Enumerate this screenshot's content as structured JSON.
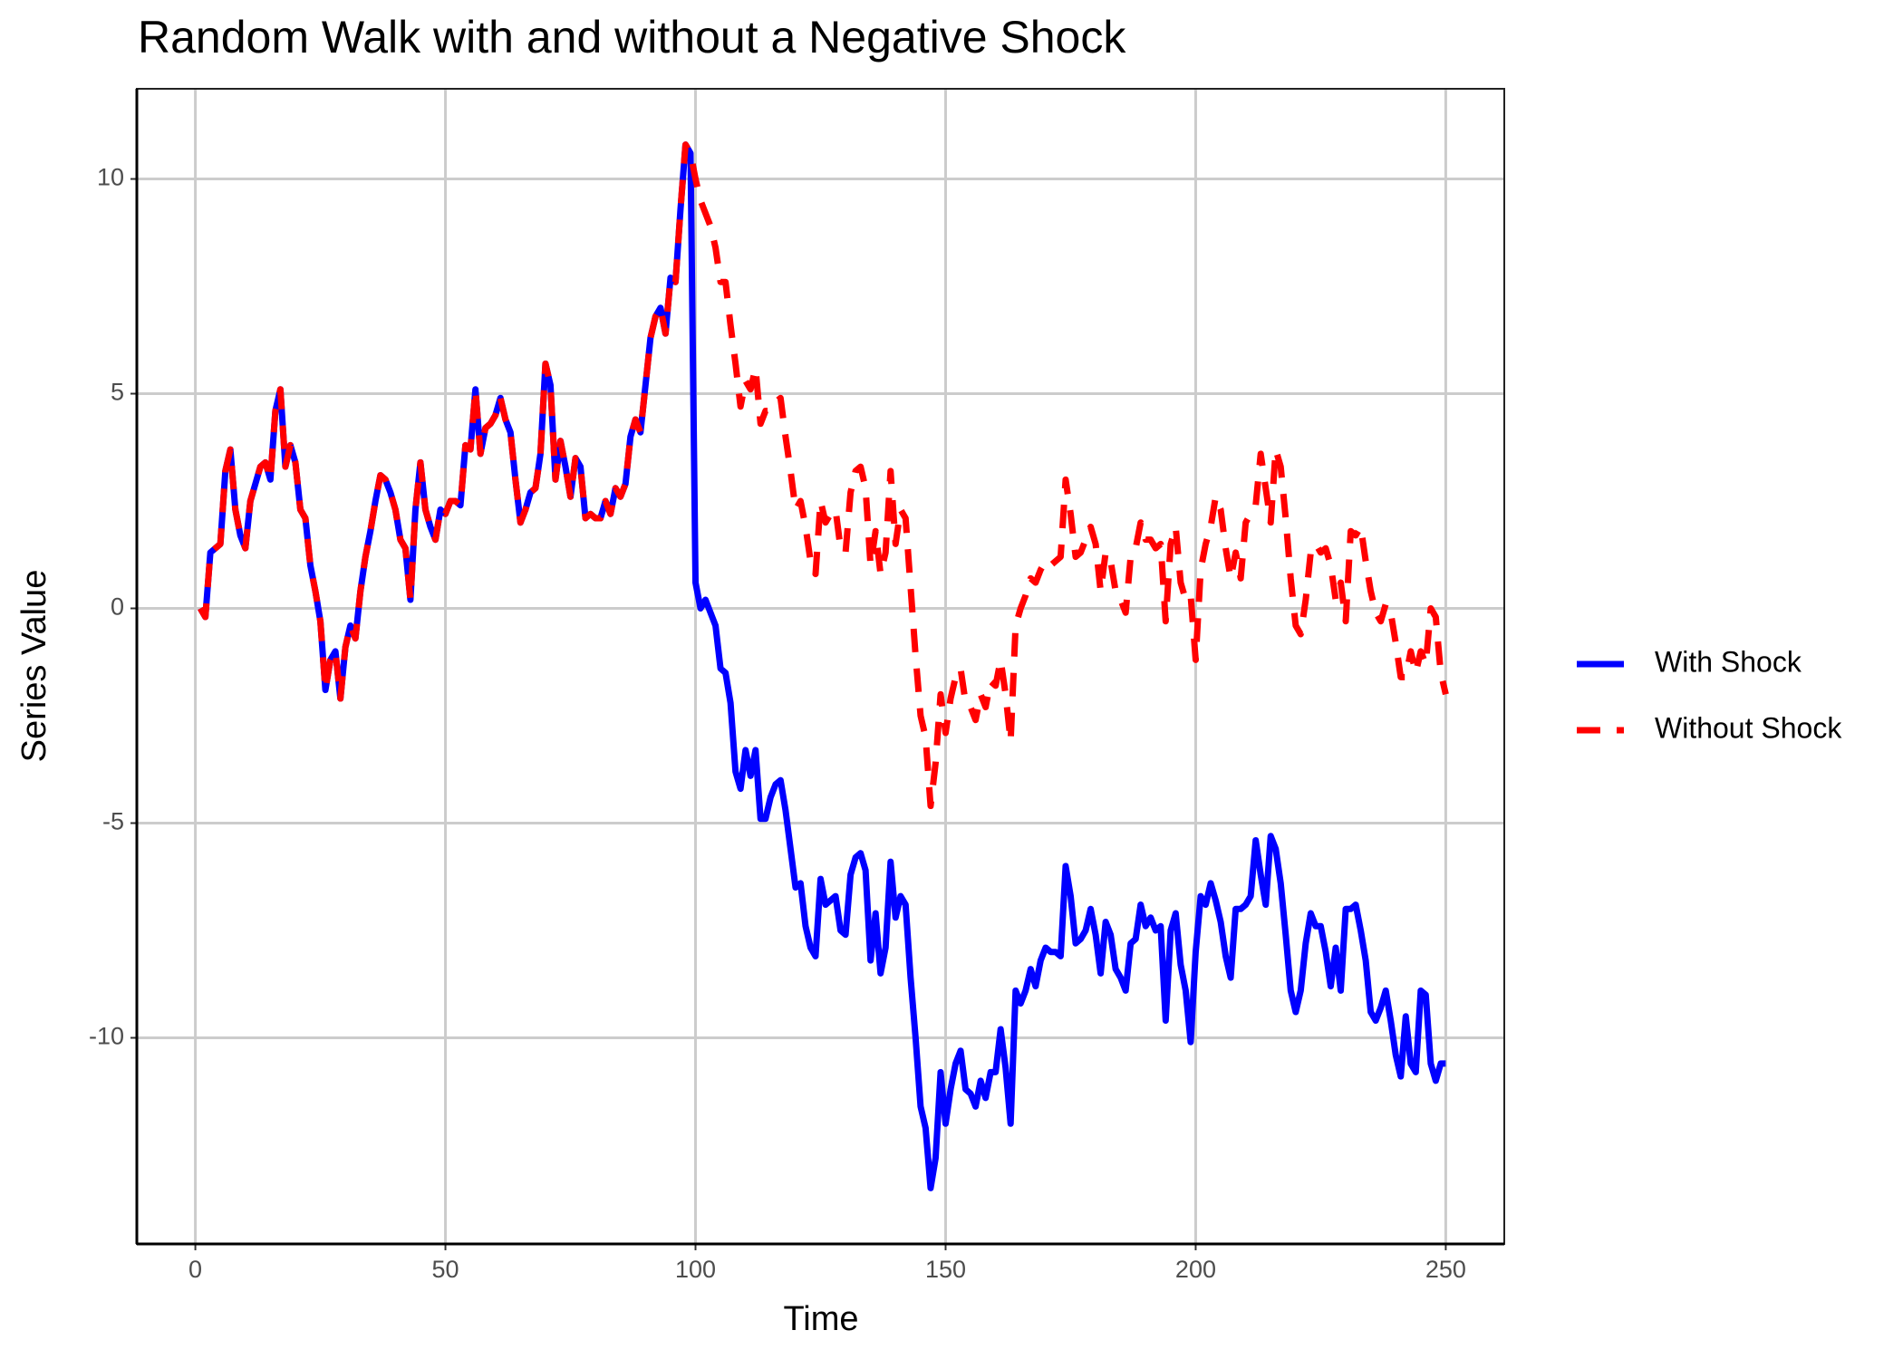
{
  "chart_data": {
    "type": "line",
    "title": "Random Walk with and without a Negative Shock",
    "x_label": "Time",
    "y_label": "Series Value",
    "x": [
      1,
      2,
      3,
      4,
      5,
      6,
      7,
      8,
      9,
      10,
      11,
      12,
      13,
      14,
      15,
      16,
      17,
      18,
      19,
      20,
      21,
      22,
      23,
      24,
      25,
      26,
      27,
      28,
      29,
      30,
      31,
      32,
      33,
      34,
      35,
      36,
      37,
      38,
      39,
      40,
      41,
      42,
      43,
      44,
      45,
      46,
      47,
      48,
      49,
      50,
      51,
      52,
      53,
      54,
      55,
      56,
      57,
      58,
      59,
      60,
      61,
      62,
      63,
      64,
      65,
      66,
      67,
      68,
      69,
      70,
      71,
      72,
      73,
      74,
      75,
      76,
      77,
      78,
      79,
      80,
      81,
      82,
      83,
      84,
      85,
      86,
      87,
      88,
      89,
      90,
      91,
      92,
      93,
      94,
      95,
      96,
      97,
      98,
      99,
      100,
      101,
      102,
      103,
      104,
      105,
      106,
      107,
      108,
      109,
      110,
      111,
      112,
      113,
      114,
      115,
      116,
      117,
      118,
      119,
      120,
      121,
      122,
      123,
      124,
      125,
      126,
      127,
      128,
      129,
      130,
      131,
      132,
      133,
      134,
      135,
      136,
      137,
      138,
      139,
      140,
      141,
      142,
      143,
      144,
      145,
      146,
      147,
      148,
      149,
      150,
      151,
      152,
      153,
      154,
      155,
      156,
      157,
      158,
      159,
      160,
      161,
      162,
      163,
      164,
      165,
      166,
      167,
      168,
      169,
      170,
      171,
      172,
      173,
      174,
      175,
      176,
      177,
      178,
      179,
      180,
      181,
      182,
      183,
      184,
      185,
      186,
      187,
      188,
      189,
      190,
      191,
      192,
      193,
      194,
      195,
      196,
      197,
      198,
      199,
      200,
      201,
      202,
      203,
      204,
      205,
      206,
      207,
      208,
      209,
      210,
      211,
      212,
      213,
      214,
      215,
      216,
      217,
      218,
      219,
      220,
      221,
      222,
      223,
      224,
      225,
      226,
      227,
      228,
      229,
      230,
      231,
      232,
      233,
      234,
      235,
      236,
      237,
      238,
      239,
      240,
      241,
      242,
      243,
      244,
      245,
      246,
      247,
      248,
      249,
      250
    ],
    "series": [
      {
        "name": "With Shock",
        "color": "#0000ff",
        "dash": false,
        "values": [
          0,
          -0.2,
          1.3,
          1.4,
          1.5,
          3.2,
          3.7,
          2.3,
          1.7,
          1.4,
          2.5,
          2.9,
          3.3,
          3.4,
          3.0,
          4.6,
          5.1,
          3.3,
          3.8,
          3.4,
          2.3,
          2.1,
          1.0,
          0.4,
          -0.3,
          -1.9,
          -1.2,
          -1.0,
          -2.1,
          -0.9,
          -0.4,
          -0.7,
          0.4,
          1.2,
          1.8,
          2.5,
          3.1,
          3.0,
          2.7,
          2.3,
          1.6,
          1.4,
          0.2,
          2.3,
          3.4,
          2.3,
          1.9,
          1.6,
          2.3,
          2.2,
          2.5,
          2.5,
          2.4,
          3.8,
          3.7,
          5.1,
          3.6,
          4.2,
          4.3,
          4.5,
          4.9,
          4.4,
          4.1,
          3.0,
          2.0,
          2.3,
          2.7,
          2.8,
          3.6,
          5.7,
          5.2,
          3.0,
          3.9,
          3.3,
          2.6,
          3.5,
          3.3,
          2.1,
          2.2,
          2.1,
          2.1,
          2.5,
          2.2,
          2.8,
          2.6,
          2.9,
          4.0,
          4.4,
          4.1,
          5.2,
          6.3,
          6.8,
          7.0,
          6.4,
          7.7,
          7.6,
          9.3,
          10.8,
          10.6,
          0.6,
          0.0,
          0.2,
          -0.1,
          -0.4,
          -1.4,
          -1.5,
          -2.2,
          -3.8,
          -4.2,
          -3.3,
          -3.9,
          -3.3,
          -4.9,
          -4.9,
          -4.4,
          -4.1,
          -4.0,
          -4.7,
          -5.6,
          -6.5,
          -6.4,
          -7.4,
          -7.9,
          -8.1,
          -6.3,
          -6.9,
          -6.8,
          -6.7,
          -7.5,
          -7.6,
          -6.2,
          -5.8,
          -5.7,
          -6.1,
          -8.2,
          -7.1,
          -8.5,
          -7.9,
          -5.9,
          -7.2,
          -6.7,
          -6.9,
          -8.6,
          -10.0,
          -11.6,
          -12.1,
          -13.5,
          -12.8,
          -10.8,
          -12.0,
          -11.2,
          -10.6,
          -10.3,
          -11.2,
          -11.3,
          -11.6,
          -11.0,
          -11.4,
          -10.8,
          -10.8,
          -9.8,
          -10.7,
          -12.0,
          -8.9,
          -9.2,
          -8.9,
          -8.4,
          -8.8,
          -8.2,
          -7.9,
          -8.0,
          -8.0,
          -8.1,
          -6.0,
          -6.7,
          -7.8,
          -7.7,
          -7.5,
          -7.0,
          -7.6,
          -8.5,
          -7.3,
          -7.6,
          -8.4,
          -8.6,
          -8.9,
          -7.8,
          -7.7,
          -6.9,
          -7.4,
          -7.2,
          -7.5,
          -7.4,
          -9.6,
          -7.5,
          -7.1,
          -8.3,
          -8.9,
          -10.1,
          -8.0,
          -6.7,
          -6.9,
          -6.4,
          -6.8,
          -7.3,
          -8.1,
          -8.6,
          -7.0,
          -7.0,
          -6.9,
          -6.7,
          -5.4,
          -6.2,
          -6.9,
          -5.3,
          -5.6,
          -6.4,
          -7.6,
          -8.9,
          -9.4,
          -8.9,
          -7.8,
          -7.1,
          -7.4,
          -7.4,
          -8.0,
          -8.8,
          -7.9,
          -8.9,
          -7.0,
          -7.0,
          -6.9,
          -7.5,
          -8.2,
          -9.4,
          -9.6,
          -9.3,
          -8.9,
          -9.6,
          -10.4,
          -10.9,
          -9.5,
          -10.6,
          -10.8,
          -8.9,
          -9.0,
          -10.6,
          -11.0,
          -10.6,
          -10.6
        ]
      },
      {
        "name": "Without Shock",
        "color": "#ff0000",
        "dash": true,
        "values": [
          0,
          -0.2,
          1.3,
          1.4,
          1.5,
          3.2,
          3.7,
          2.3,
          1.7,
          1.4,
          2.5,
          2.9,
          3.3,
          3.4,
          3.0,
          4.6,
          5.1,
          3.3,
          3.8,
          3.4,
          2.3,
          2.1,
          1.0,
          0.4,
          -0.3,
          -1.9,
          -1.2,
          -1.0,
          -2.1,
          -0.9,
          -0.4,
          -0.7,
          0.4,
          1.2,
          1.8,
          2.5,
          3.1,
          3.0,
          2.7,
          2.3,
          1.6,
          1.4,
          0.2,
          2.3,
          3.4,
          2.3,
          1.9,
          1.6,
          2.3,
          2.2,
          2.5,
          2.5,
          2.4,
          3.8,
          3.7,
          5.1,
          3.6,
          4.2,
          4.3,
          4.5,
          4.9,
          4.4,
          4.1,
          3.0,
          2.0,
          2.3,
          2.7,
          2.8,
          3.6,
          5.7,
          5.2,
          3.0,
          3.9,
          3.3,
          2.6,
          3.5,
          3.3,
          2.1,
          2.2,
          2.1,
          2.1,
          2.5,
          2.2,
          2.8,
          2.6,
          2.9,
          4.0,
          4.4,
          4.1,
          5.2,
          6.3,
          6.8,
          7.0,
          6.4,
          7.7,
          7.6,
          9.3,
          10.8,
          10.6,
          10.0,
          9.5,
          9.2,
          8.9,
          8.4,
          7.6,
          7.6,
          6.6,
          5.7,
          4.7,
          5.3,
          5.1,
          5.6,
          4.3,
          4.6,
          4.6,
          4.8,
          4.9,
          4.0,
          3.2,
          2.3,
          2.5,
          1.9,
          1.1,
          0.8,
          2.5,
          2.0,
          2.2,
          2.3,
          1.4,
          1.3,
          2.7,
          3.2,
          3.3,
          2.8,
          1.0,
          1.8,
          0.8,
          1.3,
          3.2,
          1.5,
          2.3,
          2.1,
          0.5,
          -1.1,
          -2.5,
          -3.0,
          -4.6,
          -3.6,
          -2.0,
          -2.9,
          -2.1,
          -1.6,
          -1.4,
          -2.2,
          -2.3,
          -2.6,
          -2.0,
          -2.3,
          -1.7,
          -1.8,
          -1.2,
          -2.0,
          -3.1,
          -0.4,
          0.0,
          0.3,
          0.7,
          0.6,
          0.9,
          1.1,
          1.0,
          1.1,
          1.2,
          3.0,
          2.2,
          1.2,
          1.3,
          1.6,
          1.9,
          1.5,
          0.4,
          1.3,
          1.1,
          0.4,
          0.2,
          -0.1,
          1.2,
          1.4,
          2.0,
          1.6,
          1.6,
          1.4,
          1.5,
          -0.3,
          1.5,
          1.9,
          0.6,
          0.2,
          0.3,
          -1.2,
          0.9,
          1.5,
          1.9,
          2.6,
          2.3,
          1.4,
          0.7,
          1.3,
          0.7,
          2.0,
          2.2,
          2.4,
          3.6,
          2.8,
          2.0,
          3.7,
          3.3,
          2.1,
          0.7,
          -0.4,
          -0.6,
          0.2,
          1.3,
          1.5,
          1.3,
          1.4,
          1.0,
          0.2,
          0.6,
          -0.3,
          1.8,
          1.7,
          1.9,
          1.1,
          0.4,
          -0.1,
          -0.3,
          0.1,
          -0.1,
          -0.8,
          -1.6,
          -1.6,
          -1.0,
          -1.5,
          -1.0,
          -1.3,
          0.0,
          -0.2,
          -1.5,
          -2.0
        ]
      }
    ],
    "xlim": [
      -11.7,
      261.7
    ],
    "ylim": [
      -14.8,
      12.1
    ],
    "xticks": [
      0,
      50,
      100,
      150,
      200,
      250
    ],
    "yticks": [
      -10,
      -5,
      0,
      5,
      10
    ],
    "grid": true,
    "legend": "right"
  }
}
